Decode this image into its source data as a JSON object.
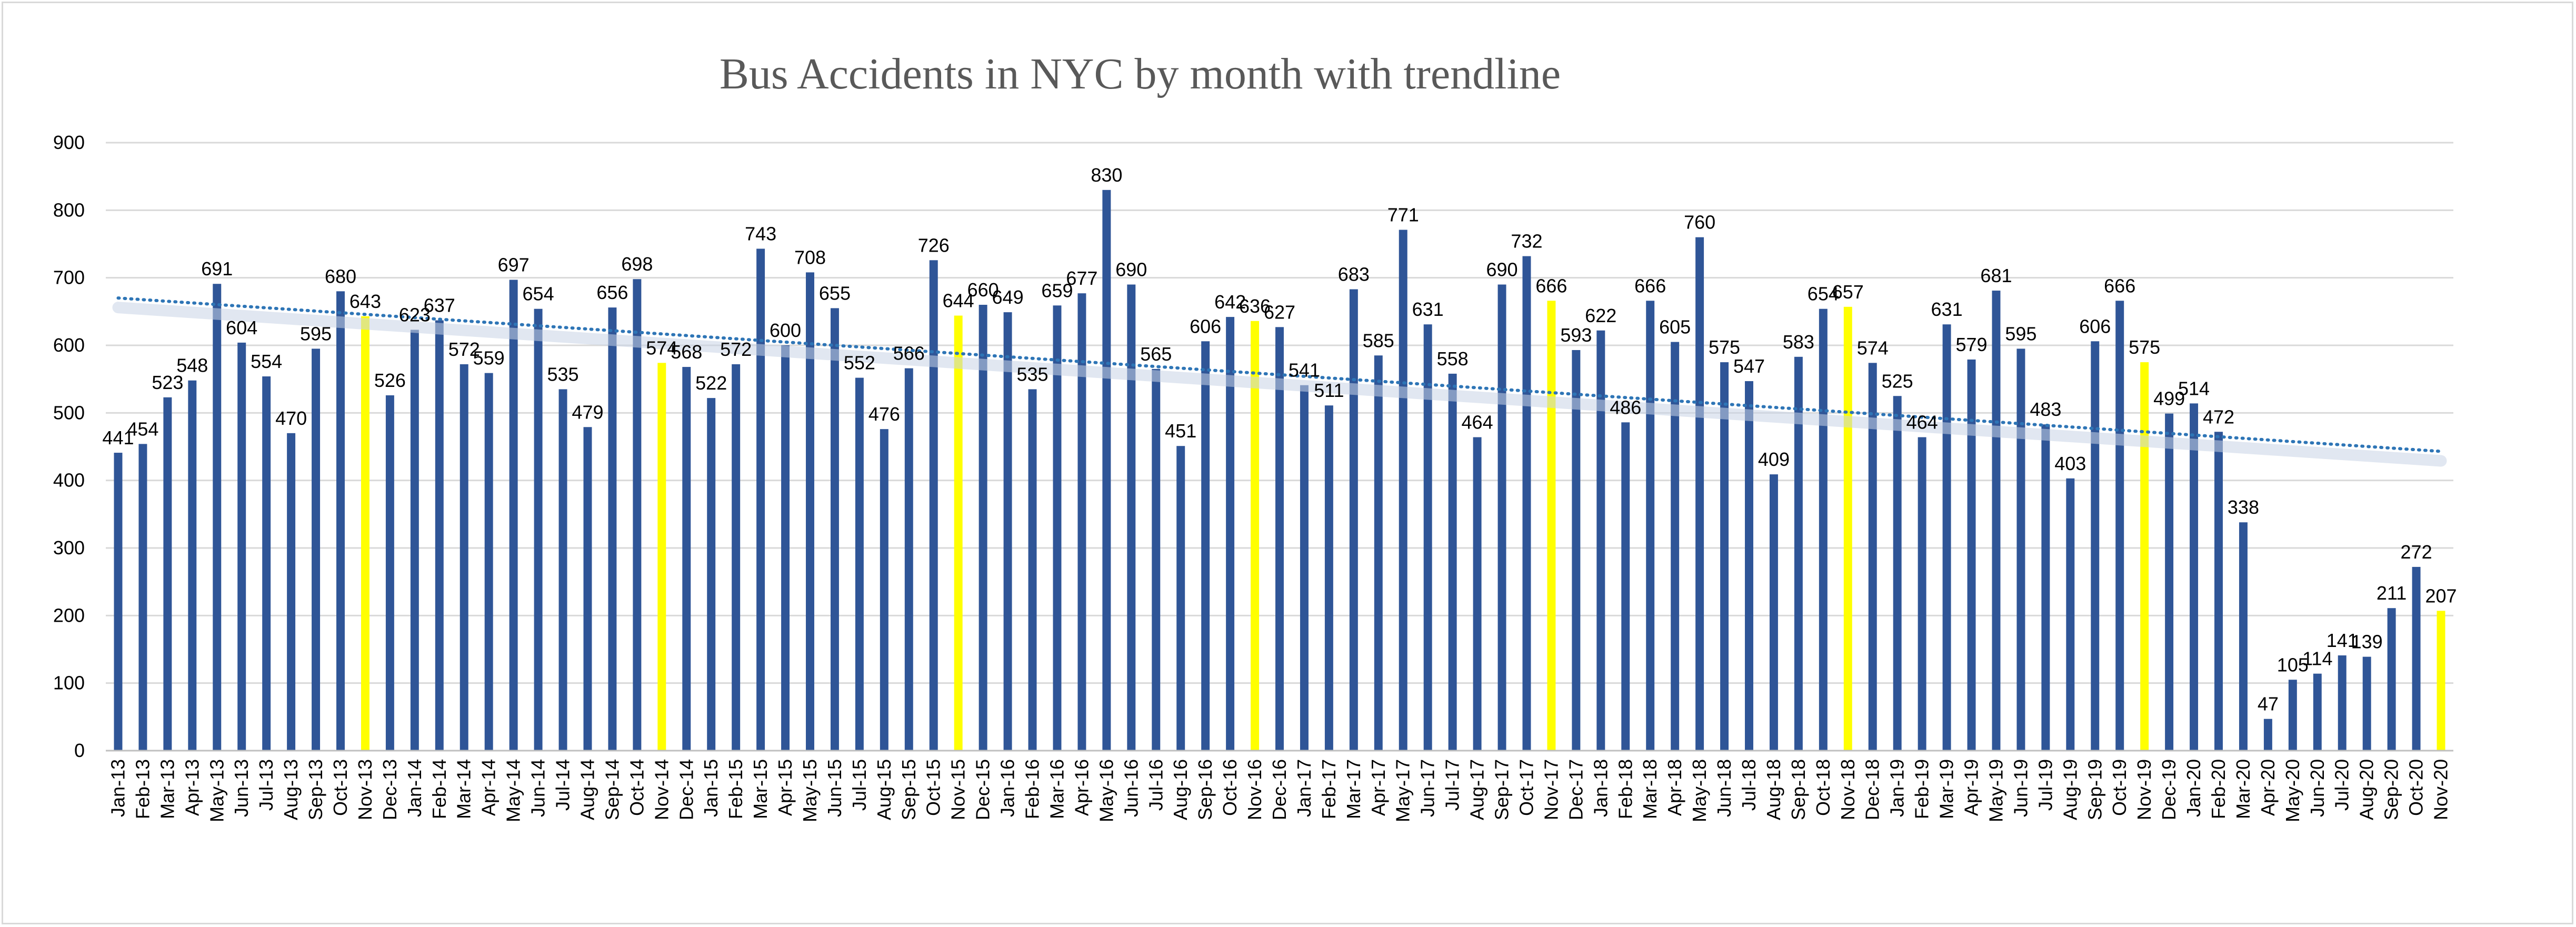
{
  "chart_data": {
    "type": "bar",
    "title": "Bus Accidents in NYC by month with trendline",
    "xlabel": "",
    "ylabel": "",
    "ylim": [
      0,
      900
    ],
    "yticks": [
      0,
      100,
      200,
      300,
      400,
      500,
      600,
      700,
      800,
      900
    ],
    "grid": true,
    "legend": "none",
    "colors": {
      "bar": "#2f5597",
      "highlight": "#ffff00",
      "trend": "#2e75b6",
      "grid": "#d9d9d9"
    },
    "highlight_categories": [
      "Nov-13",
      "Nov-14",
      "Nov-15",
      "Nov-16",
      "Nov-17",
      "Nov-18",
      "Nov-19",
      "Nov-20"
    ],
    "trendline": {
      "type": "linear",
      "style": "dotted",
      "start_value": 670,
      "end_value": 443
    },
    "categories": [
      "Jan-13",
      "Feb-13",
      "Mar-13",
      "Apr-13",
      "May-13",
      "Jun-13",
      "Jul-13",
      "Aug-13",
      "Sep-13",
      "Oct-13",
      "Nov-13",
      "Dec-13",
      "Jan-14",
      "Feb-14",
      "Mar-14",
      "Apr-14",
      "May-14",
      "Jun-14",
      "Jul-14",
      "Aug-14",
      "Sep-14",
      "Oct-14",
      "Nov-14",
      "Dec-14",
      "Jan-15",
      "Feb-15",
      "Mar-15",
      "Apr-15",
      "May-15",
      "Jun-15",
      "Jul-15",
      "Aug-15",
      "Sep-15",
      "Oct-15",
      "Nov-15",
      "Dec-15",
      "Jan-16",
      "Feb-16",
      "Mar-16",
      "Apr-16",
      "May-16",
      "Jun-16",
      "Jul-16",
      "Aug-16",
      "Sep-16",
      "Oct-16",
      "Nov-16",
      "Dec-16",
      "Jan-17",
      "Feb-17",
      "Mar-17",
      "Apr-17",
      "May-17",
      "Jun-17",
      "Jul-17",
      "Aug-17",
      "Sep-17",
      "Oct-17",
      "Nov-17",
      "Dec-17",
      "Jan-18",
      "Feb-18",
      "Mar-18",
      "Apr-18",
      "May-18",
      "Jun-18",
      "Jul-18",
      "Aug-18",
      "Sep-18",
      "Oct-18",
      "Nov-18",
      "Dec-18",
      "Jan-19",
      "Feb-19",
      "Mar-19",
      "Apr-19",
      "May-19",
      "Jun-19",
      "Jul-19",
      "Aug-19",
      "Sep-19",
      "Oct-19",
      "Nov-19",
      "Dec-19",
      "Jan-20",
      "Feb-20",
      "Mar-20",
      "Apr-20",
      "May-20",
      "Jun-20",
      "Jul-20",
      "Aug-20",
      "Sep-20",
      "Oct-20",
      "Nov-20"
    ],
    "values": [
      441,
      454,
      523,
      548,
      691,
      604,
      554,
      470,
      595,
      680,
      643,
      526,
      623,
      637,
      572,
      559,
      697,
      654,
      535,
      479,
      656,
      698,
      574,
      568,
      522,
      572,
      743,
      600,
      708,
      655,
      552,
      476,
      566,
      726,
      644,
      660,
      649,
      535,
      659,
      677,
      830,
      690,
      565,
      451,
      606,
      642,
      636,
      627,
      541,
      511,
      683,
      585,
      771,
      631,
      558,
      464,
      690,
      732,
      666,
      593,
      622,
      486,
      666,
      605,
      760,
      575,
      547,
      409,
      583,
      654,
      657,
      574,
      525,
      464,
      631,
      579,
      681,
      595,
      483,
      403,
      606,
      666,
      575,
      499,
      514,
      472,
      338,
      47,
      105,
      114,
      141,
      139,
      211,
      272,
      207
    ]
  }
}
